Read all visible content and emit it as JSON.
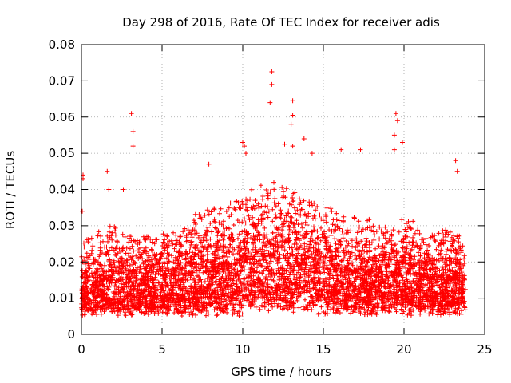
{
  "chart_data": {
    "type": "scatter",
    "title": "Day 298 of 2016, Rate Of TEC Index for receiver adis",
    "xlabel": "GPS time / hours",
    "ylabel": "ROTI / TECUs",
    "xlim": [
      0,
      25
    ],
    "ylim": [
      0,
      0.08
    ],
    "xticks": [
      0,
      5,
      10,
      15,
      20,
      25
    ],
    "yticks": [
      0,
      0.01,
      0.02,
      0.03,
      0.04,
      0.05,
      0.06,
      0.07,
      0.08
    ],
    "xtick_labels": [
      "0",
      "5",
      "10",
      "15",
      "20",
      "25"
    ],
    "ytick_labels": [
      "0",
      "0.01",
      "0.02",
      "0.03",
      "0.04",
      "0.05",
      "0.06",
      "0.07",
      "0.08"
    ],
    "grid": true,
    "marker": "+",
    "color": "#ff0000",
    "series": [
      {
        "name": "ROTI",
        "description": "dense point cloud; representative envelope values",
        "envelope": {
          "x": [
            0,
            1,
            2,
            3,
            4,
            5,
            6,
            7,
            8,
            9,
            10,
            11,
            12,
            13,
            14,
            15,
            16,
            17,
            18,
            19,
            20,
            21,
            22,
            23,
            23.8
          ],
          "y_low": [
            0.005,
            0.005,
            0.005,
            0.005,
            0.005,
            0.005,
            0.005,
            0.005,
            0.005,
            0.005,
            0.005,
            0.006,
            0.006,
            0.006,
            0.006,
            0.005,
            0.005,
            0.005,
            0.005,
            0.005,
            0.005,
            0.005,
            0.005,
            0.005,
            0.005
          ],
          "y_typ": [
            0.012,
            0.014,
            0.015,
            0.013,
            0.014,
            0.016,
            0.016,
            0.017,
            0.017,
            0.018,
            0.02,
            0.022,
            0.021,
            0.02,
            0.019,
            0.018,
            0.017,
            0.017,
            0.016,
            0.016,
            0.017,
            0.016,
            0.015,
            0.015,
            0.014
          ],
          "y_high": [
            0.025,
            0.03,
            0.03,
            0.028,
            0.027,
            0.028,
            0.03,
            0.033,
            0.035,
            0.036,
            0.04,
            0.04,
            0.042,
            0.04,
            0.038,
            0.036,
            0.034,
            0.033,
            0.032,
            0.03,
            0.032,
            0.03,
            0.028,
            0.03,
            0.025
          ]
        },
        "outliers": [
          {
            "x": 0.05,
            "y": 0.034
          },
          {
            "x": 0.1,
            "y": 0.043
          },
          {
            "x": 0.1,
            "y": 0.044
          },
          {
            "x": 1.6,
            "y": 0.045
          },
          {
            "x": 1.7,
            "y": 0.04
          },
          {
            "x": 2.6,
            "y": 0.04
          },
          {
            "x": 3.1,
            "y": 0.061
          },
          {
            "x": 3.2,
            "y": 0.056
          },
          {
            "x": 3.2,
            "y": 0.052
          },
          {
            "x": 7.9,
            "y": 0.047
          },
          {
            "x": 10.0,
            "y": 0.053
          },
          {
            "x": 10.1,
            "y": 0.052
          },
          {
            "x": 10.2,
            "y": 0.05
          },
          {
            "x": 11.8,
            "y": 0.0725
          },
          {
            "x": 11.8,
            "y": 0.069
          },
          {
            "x": 11.7,
            "y": 0.064
          },
          {
            "x": 12.6,
            "y": 0.0525
          },
          {
            "x": 13.1,
            "y": 0.0645
          },
          {
            "x": 13.1,
            "y": 0.0605
          },
          {
            "x": 13.0,
            "y": 0.058
          },
          {
            "x": 13.1,
            "y": 0.052
          },
          {
            "x": 13.8,
            "y": 0.054
          },
          {
            "x": 14.3,
            "y": 0.05
          },
          {
            "x": 16.1,
            "y": 0.051
          },
          {
            "x": 17.3,
            "y": 0.051
          },
          {
            "x": 19.5,
            "y": 0.061
          },
          {
            "x": 19.6,
            "y": 0.059
          },
          {
            "x": 19.4,
            "y": 0.055
          },
          {
            "x": 19.4,
            "y": 0.051
          },
          {
            "x": 19.9,
            "y": 0.053
          },
          {
            "x": 23.2,
            "y": 0.048
          },
          {
            "x": 23.3,
            "y": 0.045
          }
        ]
      }
    ]
  }
}
